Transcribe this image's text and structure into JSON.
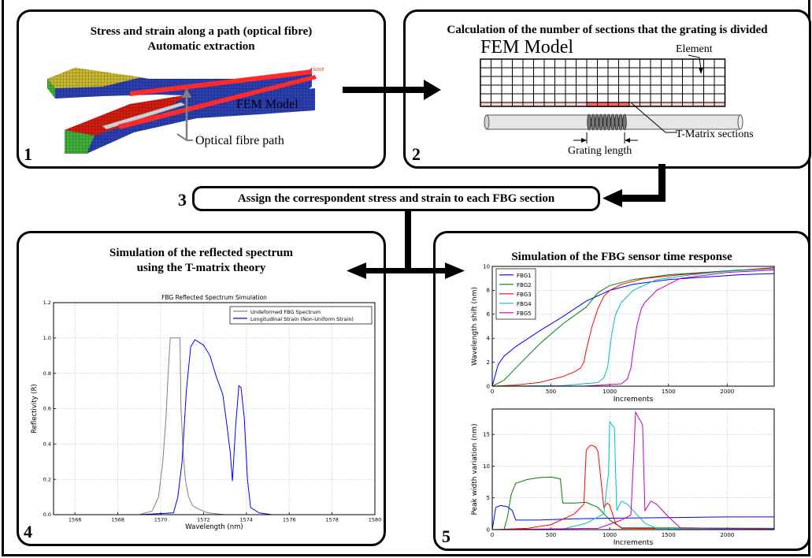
{
  "panel1": {
    "title_line1": "Stress and strain along a path (optical fibre)",
    "title_line2": "Automatic extraction",
    "fem_label": "FEM Model",
    "path_label": "Optical fibre path",
    "number": "1"
  },
  "panel2": {
    "title": "Calculation of the number of sections that the grating is divided",
    "fem_label": "FEM Model",
    "element_label": "Element",
    "tmatrix_label": "T-Matrix sections",
    "grating_label": "Grating length",
    "number": "2"
  },
  "step3": {
    "number": "3",
    "label": "Assign the correspondent stress and strain to each FBG section"
  },
  "panel4": {
    "title_line1": "Simulation of the reflected spectrum",
    "title_line2": "using the T-matrix theory",
    "number": "4"
  },
  "panel5": {
    "title": "Simulation of the FBG sensor time response",
    "number": "5"
  },
  "colors": {
    "fbg1": "#0000ff",
    "fbg2": "#008000",
    "fbg3": "#ff0000",
    "fbg4": "#00bfbf",
    "fbg5": "#bf00bf",
    "undeformed": "#808080",
    "strained": "#0000ff"
  },
  "chart_data": [
    {
      "type": "line",
      "title": "FBG Reflected Spectrum Simulation",
      "xlabel": "Wavelength (nm)",
      "ylabel": "Reflectivity (R)",
      "xlim": [
        1565,
        1580
      ],
      "ylim": [
        0,
        1.2
      ],
      "xticks": [
        "1566",
        "1568",
        "1570",
        "1572",
        "1574",
        "1576",
        "1578",
        "1580"
      ],
      "yticks": [
        "0.0",
        "0.2",
        "0.4",
        "0.6",
        "0.8",
        "1.0",
        "1.2"
      ],
      "grid": true,
      "legend_position": "top-right",
      "series": [
        {
          "name": "Undeformed FBG Spectrum",
          "x": [
            1565.0,
            1569.0,
            1569.6,
            1569.9,
            1570.1,
            1570.25,
            1570.35,
            1570.45,
            1570.5,
            1570.9,
            1570.95,
            1571.05,
            1571.15,
            1571.3,
            1571.5,
            1571.8,
            1572.2,
            1573.0,
            1580.0
          ],
          "y": [
            0.0,
            0.0,
            0.02,
            0.1,
            0.3,
            0.55,
            0.8,
            1.0,
            1.0,
            1.0,
            0.6,
            0.35,
            0.2,
            0.1,
            0.05,
            0.03,
            0.01,
            0.0,
            0.0
          ]
        },
        {
          "name": "Longitudinal Strain (Non-Uniform Strain)",
          "x": [
            1565.0,
            1569.0,
            1570.6,
            1570.8,
            1571.0,
            1571.2,
            1571.4,
            1571.6,
            1572.0,
            1572.3,
            1572.6,
            1572.9,
            1573.1,
            1573.25,
            1573.35,
            1573.5,
            1573.65,
            1573.75,
            1573.9,
            1574.05,
            1574.2,
            1574.6,
            1575.2,
            1580.0
          ],
          "y": [
            0.0,
            0.0,
            0.01,
            0.1,
            0.3,
            0.7,
            0.95,
            0.99,
            0.96,
            0.9,
            0.78,
            0.68,
            0.5,
            0.35,
            0.19,
            0.5,
            0.73,
            0.72,
            0.55,
            0.2,
            0.04,
            0.01,
            0.0,
            0.0
          ]
        }
      ]
    },
    {
      "type": "line",
      "xlabel": "Increments",
      "ylabel": "Wavelength shift (nm)",
      "xlim": [
        0,
        2400
      ],
      "ylim": [
        0,
        10
      ],
      "xticks": [
        "0",
        "500",
        "1000",
        "1500",
        "2000"
      ],
      "yticks": [
        "0",
        "2",
        "4",
        "6",
        "8",
        "10"
      ],
      "grid": true,
      "legend_position": "top-left",
      "series": [
        {
          "name": "FBG1",
          "x": [
            0,
            50,
            100,
            200,
            400,
            600,
            800,
            1000,
            1200,
            1500,
            1800,
            2100,
            2400
          ],
          "y": [
            0,
            1.8,
            2.5,
            3.3,
            4.6,
            5.8,
            7.1,
            8.0,
            8.5,
            8.9,
            9.1,
            9.3,
            9.4
          ]
        },
        {
          "name": "FBG2",
          "x": [
            0,
            100,
            200,
            400,
            600,
            800,
            900,
            1000,
            1200,
            1500,
            1800,
            2100,
            2400
          ],
          "y": [
            0,
            0.5,
            1.5,
            3.5,
            5.2,
            6.6,
            7.8,
            8.4,
            8.9,
            9.3,
            9.5,
            9.7,
            9.8
          ]
        },
        {
          "name": "FBG3",
          "x": [
            0,
            200,
            400,
            600,
            700,
            750,
            780,
            800,
            850,
            900,
            950,
            1000,
            1100,
            1300,
            1600,
            2000,
            2400
          ],
          "y": [
            0,
            0.1,
            0.3,
            0.8,
            1.2,
            1.5,
            2.0,
            3.0,
            5.0,
            6.5,
            7.5,
            8.0,
            8.5,
            9.0,
            9.3,
            9.6,
            9.9
          ]
        },
        {
          "name": "FBG4",
          "x": [
            0,
            600,
            900,
            950,
            980,
            1000,
            1020,
            1050,
            1100,
            1200,
            1400,
            1700,
            2000,
            2400
          ],
          "y": [
            0,
            0.05,
            0.3,
            0.7,
            1.5,
            3.0,
            4.5,
            6.0,
            7.0,
            8.0,
            8.9,
            9.3,
            9.6,
            9.8
          ]
        },
        {
          "name": "FBG5",
          "x": [
            0,
            800,
            1100,
            1150,
            1180,
            1200,
            1230,
            1270,
            1300,
            1400,
            1600,
            2000,
            2400
          ],
          "y": [
            0,
            0.02,
            0.2,
            0.6,
            1.5,
            3.0,
            5.0,
            6.5,
            7.0,
            8.0,
            9.0,
            9.5,
            9.7
          ]
        }
      ]
    },
    {
      "type": "line",
      "xlabel": "Increments",
      "ylabel": "Peak width variation (nm)",
      "xlim": [
        0,
        2400
      ],
      "ylim": [
        0,
        19
      ],
      "xticks": [
        "0",
        "500",
        "1000",
        "1500",
        "2000"
      ],
      "yticks": [
        "0",
        "5",
        "10",
        "15"
      ],
      "grid": true,
      "series": [
        {
          "name": "FBG1",
          "x": [
            0,
            30,
            70,
            130,
            170,
            200,
            400,
            700,
            1000,
            1500,
            2000,
            2400
          ],
          "y": [
            0,
            3.5,
            3.8,
            3.6,
            3.0,
            1.5,
            1.5,
            1.7,
            1.8,
            1.9,
            2.0,
            2.0
          ]
        },
        {
          "name": "FBG2",
          "x": [
            0,
            100,
            130,
            160,
            200,
            300,
            400,
            500,
            580,
            600,
            700,
            800,
            900,
            1000,
            1100,
            2400
          ],
          "y": [
            0,
            0,
            2.0,
            5.5,
            7.3,
            7.9,
            8.2,
            8.3,
            8.0,
            4.2,
            4.2,
            4.3,
            3.5,
            1.5,
            0.3,
            0.2
          ]
        },
        {
          "name": "FBG3",
          "x": [
            0,
            300,
            500,
            700,
            780,
            800,
            830,
            850,
            880,
            900,
            950,
            980,
            1000,
            1050,
            1100,
            2400
          ],
          "y": [
            0,
            0.2,
            0.8,
            2.5,
            4.0,
            12.5,
            13.2,
            13.3,
            13.0,
            12.3,
            3.5,
            4.2,
            3.8,
            1.0,
            0.2,
            0.1
          ]
        },
        {
          "name": "FBG4",
          "x": [
            0,
            600,
            800,
            950,
            990,
            1000,
            1020,
            1040,
            1060,
            1080,
            1100,
            1150,
            1200,
            1300,
            1400,
            2400
          ],
          "y": [
            0,
            0.1,
            1.0,
            2.5,
            9.0,
            17.0,
            16.5,
            16.0,
            3.0,
            3.8,
            4.5,
            4.0,
            3.0,
            1.0,
            0.2,
            0.1
          ]
        },
        {
          "name": "FBG5",
          "x": [
            0,
            900,
            1100,
            1180,
            1200,
            1220,
            1250,
            1280,
            1300,
            1350,
            1400,
            1500,
            1600,
            2400
          ],
          "y": [
            0,
            0.2,
            1.5,
            2.3,
            10.0,
            18.5,
            17.5,
            16.5,
            3.0,
            4.5,
            4.0,
            2.0,
            0.3,
            0.1
          ]
        }
      ]
    }
  ]
}
